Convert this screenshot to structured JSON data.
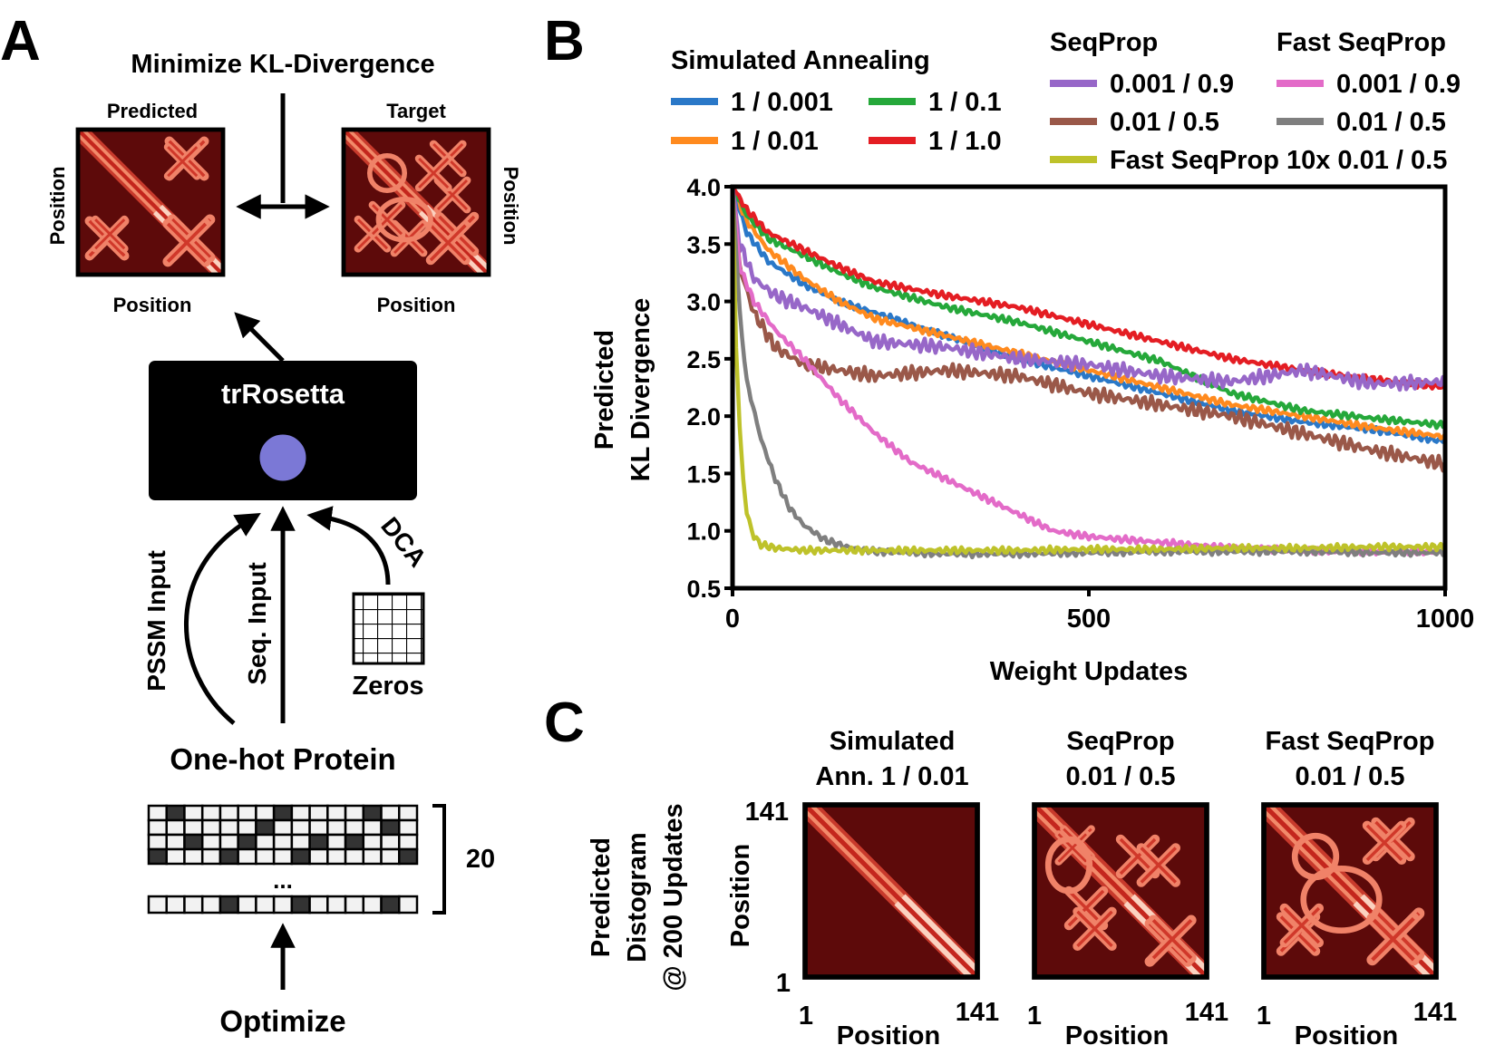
{
  "panel_a": {
    "panel_letter": "A",
    "title": "Minimize KL-Divergence",
    "predicted_label": "Predicted",
    "target_label": "Target",
    "axis_position": "Position",
    "model_name": "trRosetta",
    "input_pssm": "PSSM Input",
    "input_seq": "Seq. Input",
    "input_dca": "DCA",
    "zeros_label": "Zeros",
    "onehot_label": "One-hot Protein",
    "rows_count": "20",
    "ellipsis": "...",
    "optimize_label": "Optimize"
  },
  "panel_b": {
    "panel_letter": "B",
    "legend": {
      "sa_heading": "Simulated Annealing",
      "seqprop_heading": "SeqProp",
      "fast_heading": "Fast SeqProp",
      "entries": [
        {
          "label": "1 / 0.001",
          "color": "#2a78c8"
        },
        {
          "label": "1 / 0.1",
          "color": "#25a83a"
        },
        {
          "label": "1 / 0.01",
          "color": "#ff8a1e"
        },
        {
          "label": "1 / 1.0",
          "color": "#e41d23"
        },
        {
          "label": "0.001 / 0.9",
          "color": "#9767c8"
        },
        {
          "label": "0.001 / 0.9",
          "color": "#e36bc8"
        },
        {
          "label": "0.01 / 0.5",
          "color": "#9a5849"
        },
        {
          "label": "0.01 / 0.5",
          "color": "#7f7f7f"
        },
        {
          "label": "Fast SeqProp 10x 0.01 / 0.5",
          "color": "#bec22a"
        }
      ]
    }
  },
  "panel_c": {
    "panel_letter": "C",
    "row_label": [
      "Predicted",
      "Distogram",
      "@ 200 Updates"
    ],
    "maps": [
      {
        "title1": "Simulated",
        "title2": "Ann. 1 / 0.01"
      },
      {
        "title1": "SeqProp",
        "title2": "0.01 / 0.5"
      },
      {
        "title1": "Fast SeqProp",
        "title2": "0.01 / 0.5"
      }
    ],
    "axis_position": "Position",
    "tick_min": "1",
    "tick_max": "141"
  },
  "chart_data": {
    "type": "line",
    "title": "",
    "xlabel": "Weight Updates",
    "ylabel": "Predicted KL Divergence",
    "ylabel_lines": [
      "Predicted",
      "KL Divergence"
    ],
    "xlim": [
      0,
      1000
    ],
    "ylim": [
      0.5,
      4.0
    ],
    "xticks": [
      0,
      500,
      1000
    ],
    "xtick_labels": [
      "0",
      "500",
      "1000"
    ],
    "yticks": [
      0.5,
      1.0,
      1.5,
      2.0,
      2.5,
      3.0,
      3.5,
      4.0
    ],
    "ytick_labels": [
      "0.5",
      "1.0",
      "1.5",
      "2.0",
      "2.5",
      "3.0",
      "3.5",
      "4.0"
    ],
    "grid": false,
    "series": [
      {
        "name": "Simulated Annealing 1 / 0.001",
        "color": "#2a78c8",
        "x": [
          0,
          20,
          50,
          100,
          150,
          200,
          300,
          400,
          500,
          600,
          700,
          800,
          900,
          1000
        ],
        "y": [
          4.0,
          3.6,
          3.35,
          3.15,
          3.0,
          2.9,
          2.7,
          2.5,
          2.35,
          2.2,
          2.05,
          1.95,
          1.88,
          1.78
        ]
      },
      {
        "name": "Simulated Annealing 1 / 0.01",
        "color": "#ff8a1e",
        "x": [
          0,
          20,
          50,
          100,
          150,
          200,
          300,
          400,
          500,
          600,
          700,
          800,
          900,
          1000
        ],
        "y": [
          4.0,
          3.7,
          3.45,
          3.2,
          3.0,
          2.85,
          2.7,
          2.55,
          2.4,
          2.25,
          2.1,
          2.0,
          1.9,
          1.82
        ]
      },
      {
        "name": "Simulated Annealing 1 / 0.1",
        "color": "#25a83a",
        "x": [
          0,
          20,
          50,
          100,
          150,
          200,
          300,
          400,
          500,
          600,
          700,
          800,
          900,
          1000
        ],
        "y": [
          4.0,
          3.75,
          3.55,
          3.4,
          3.25,
          3.12,
          2.95,
          2.82,
          2.65,
          2.48,
          2.2,
          2.05,
          1.98,
          1.92
        ]
      },
      {
        "name": "Simulated Annealing 1 / 1.0",
        "color": "#e41d23",
        "x": [
          0,
          20,
          50,
          100,
          150,
          200,
          300,
          400,
          500,
          600,
          700,
          800,
          900,
          1000
        ],
        "y": [
          4.0,
          3.8,
          3.6,
          3.45,
          3.3,
          3.17,
          3.05,
          2.95,
          2.8,
          2.65,
          2.5,
          2.4,
          2.32,
          2.25
        ]
      },
      {
        "name": "SeqProp 0.001 / 0.9",
        "color": "#9767c8",
        "x": [
          0,
          10,
          30,
          60,
          100,
          150,
          200,
          300,
          400,
          500,
          600,
          700,
          800,
          900,
          1000
        ],
        "y": [
          4.0,
          3.5,
          3.2,
          3.05,
          2.95,
          2.8,
          2.65,
          2.6,
          2.5,
          2.45,
          2.35,
          2.3,
          2.4,
          2.28,
          2.3
        ]
      },
      {
        "name": "SeqProp 0.01 / 0.5",
        "color": "#9a5849",
        "x": [
          0,
          10,
          30,
          60,
          100,
          150,
          200,
          300,
          400,
          500,
          600,
          700,
          800,
          900,
          1000
        ],
        "y": [
          4.0,
          3.3,
          2.9,
          2.6,
          2.45,
          2.4,
          2.35,
          2.4,
          2.35,
          2.2,
          2.1,
          2.0,
          1.85,
          1.7,
          1.58
        ]
      },
      {
        "name": "Fast SeqProp 0.001 / 0.9",
        "color": "#e36bc8",
        "x": [
          0,
          10,
          30,
          60,
          100,
          150,
          200,
          250,
          300,
          350,
          400,
          450,
          500,
          600,
          700,
          800,
          900,
          1000
        ],
        "y": [
          4.0,
          3.3,
          3.0,
          2.75,
          2.5,
          2.15,
          1.85,
          1.6,
          1.45,
          1.3,
          1.15,
          1.0,
          0.95,
          0.9,
          0.85,
          0.83,
          0.82,
          0.82
        ]
      },
      {
        "name": "Fast SeqProp 0.01 / 0.5",
        "color": "#7f7f7f",
        "x": [
          0,
          10,
          20,
          40,
          60,
          80,
          100,
          130,
          160,
          200,
          300,
          400,
          500,
          600,
          700,
          800,
          900,
          1000
        ],
        "y": [
          4.0,
          2.9,
          2.3,
          1.8,
          1.45,
          1.2,
          1.05,
          0.92,
          0.86,
          0.82,
          0.8,
          0.8,
          0.81,
          0.82,
          0.82,
          0.82,
          0.81,
          0.81
        ]
      },
      {
        "name": "Fast SeqProp 10x 0.01 / 0.5",
        "color": "#bec22a",
        "x": [
          0,
          5,
          10,
          15,
          20,
          30,
          40,
          60,
          80,
          100,
          200,
          300,
          400,
          500,
          600,
          700,
          800,
          900,
          1000
        ],
        "y": [
          4.0,
          2.6,
          1.9,
          1.45,
          1.15,
          0.95,
          0.88,
          0.85,
          0.84,
          0.83,
          0.83,
          0.83,
          0.83,
          0.84,
          0.84,
          0.85,
          0.85,
          0.86,
          0.86
        ]
      }
    ]
  }
}
